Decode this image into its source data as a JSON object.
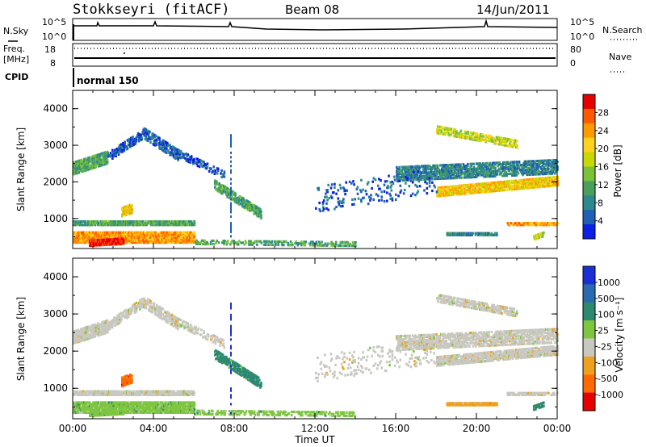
{
  "header": {
    "title": "Stokkseyri (fitACF)",
    "beam": "Beam 08",
    "date": "14/Jun/2011"
  },
  "strip_labels": {
    "nsky": "N.Sky",
    "nsky_ticks": [
      "10^5",
      "10^0"
    ],
    "nsearch": "N.Search",
    "freq": "Freq.",
    "freq_unit": "[MHz]",
    "freq_ticks": [
      "18",
      "8"
    ],
    "nave": "Nave",
    "nave_ticks": [
      "80",
      "0"
    ],
    "cpid": "CPID",
    "cpid_value": "normal 150"
  },
  "chart_data": [
    {
      "type": "heatmap",
      "name": "power",
      "ylabel": "Slant Range [km]",
      "yticks": [
        "1000",
        "2000",
        "3000",
        "4000"
      ],
      "ylim": [
        180,
        4500
      ],
      "xlim": [
        0,
        24
      ],
      "colorbar_label": "Power [dB]",
      "colorbar_ticks": [
        "4",
        "8",
        "12",
        "16",
        "20",
        "24",
        "28"
      ],
      "colorbar_colors": [
        "#0b1fe6",
        "#1f5fb4",
        "#2c8a8c",
        "#4aa05a",
        "#7ac23a",
        "#c8d800",
        "#ffd21c",
        "#ff9a00",
        "#ff5a00",
        "#e60000"
      ]
    },
    {
      "type": "heatmap",
      "name": "velocity",
      "ylabel": "Slant Range [km]",
      "yticks": [
        "1000",
        "2000",
        "3000",
        "4000"
      ],
      "ylim": [
        180,
        4500
      ],
      "xlim": [
        0,
        24
      ],
      "xticks": [
        "00:00",
        "04:00",
        "08:00",
        "12:00",
        "16:00",
        "20:00",
        "00:00"
      ],
      "xlabel": "Time UT",
      "colorbar_label": "Velocity [m s⁻¹]",
      "colorbar_ticks": [
        "1000",
        "500",
        "100",
        "25",
        "-25",
        "-100",
        "-500",
        "-1000"
      ],
      "colorbar_colors": [
        "#1a2fd8",
        "#2b6ab0",
        "#2d8a70",
        "#7fc640",
        "#c8c8c0",
        "#f0a020",
        "#ff6a00",
        "#e60000"
      ]
    }
  ]
}
